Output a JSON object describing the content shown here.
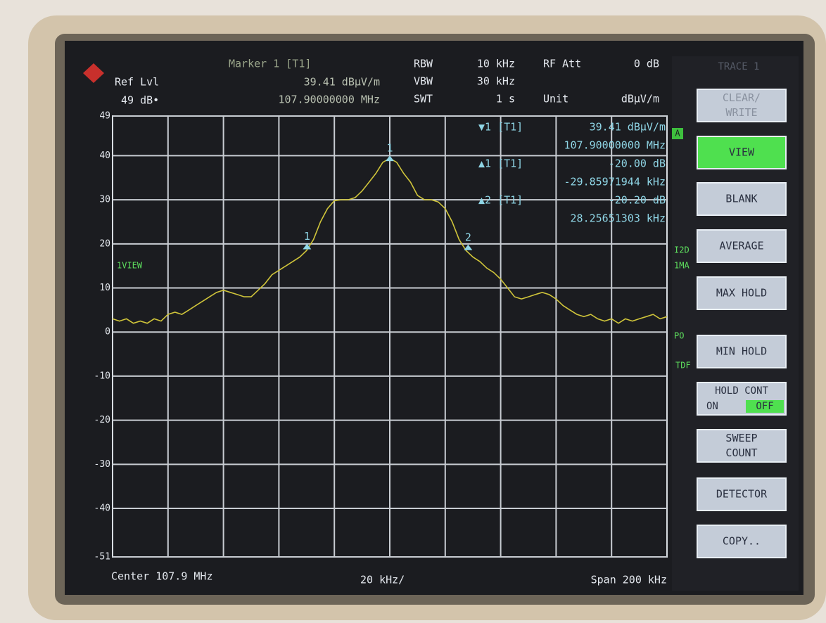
{
  "header": {
    "ref_label": "Ref Lvl",
    "ref_value": "49 dB•",
    "marker_title": "Marker 1 [T1]",
    "marker_level": "39.41 dBµV/m",
    "marker_freq": "107.90000000 MHz",
    "settings": [
      [
        "RBW",
        "10 kHz",
        "RF Att",
        "0 dB"
      ],
      [
        "VBW",
        "30 kHz",
        "",
        ""
      ],
      [
        "SWT",
        "1 s",
        "Unit",
        "dBµV/m"
      ]
    ],
    "trace_menu": "TRACE 1"
  },
  "side_labels": {
    "trace_mode": "1VIEW",
    "a": "A",
    "i2d": "I2D",
    "ima": "1MA",
    "po": "PO",
    "tdf": "TDF"
  },
  "marker_table": [
    {
      "id": "▼1 [T1]",
      "level": "39.41 dBµV/m",
      "freq": "107.90000000 MHz"
    },
    {
      "id": "▲1 [T1]",
      "level": "-20.00 dB",
      "freq": "-29.85971944 kHz"
    },
    {
      "id": "▲2 [T1]",
      "level": "-20.20 dB",
      "freq": "28.25651303 kHz"
    }
  ],
  "footer": {
    "center": "Center 107.9 MHz",
    "div": "20 kHz/",
    "span": "Span 200 kHz"
  },
  "softkeys": [
    {
      "lines": [
        "CLEAR/",
        "WRITE"
      ]
    },
    {
      "lines": [
        "VIEW"
      ]
    },
    {
      "lines": [
        "BLANK"
      ]
    },
    {
      "lines": [
        "AVERAGE"
      ]
    },
    {
      "lines": [
        "MAX HOLD"
      ]
    },
    {
      "lines": [
        "MIN HOLD"
      ]
    },
    {
      "lines": [
        "HOLD  CONT",
        "ON",
        "OFF"
      ]
    },
    {
      "lines": [
        "SWEEP",
        "COUNT"
      ]
    },
    {
      "lines": [
        "DETECTOR"
      ]
    },
    {
      "lines": [
        "COPY.."
      ]
    }
  ],
  "chart_data": {
    "type": "line",
    "color": "#cfc43a",
    "grid": true,
    "ylim": [
      -51,
      49
    ],
    "yticks": [
      49,
      40,
      30,
      20,
      10,
      0,
      -10,
      -20,
      -30,
      -40,
      -51
    ],
    "xlim": [
      -100,
      100
    ],
    "values": [
      3,
      2.5,
      3,
      2,
      2.5,
      2,
      3,
      2.5,
      4,
      4.5,
      4,
      5,
      6,
      7,
      8,
      9,
      9.5,
      9,
      8.5,
      8,
      8,
      9.5,
      11,
      13,
      14,
      15,
      16,
      17,
      18.5,
      21,
      25,
      28,
      29.8,
      30,
      30,
      30.5,
      32,
      34,
      36,
      38.5,
      39.4,
      38.5,
      36,
      34,
      31,
      30,
      30,
      29.5,
      28,
      25,
      21,
      18.5,
      17,
      16,
      14.5,
      13.5,
      12,
      10,
      8,
      7.5,
      8,
      8.5,
      9,
      8.5,
      7.5,
      6,
      5,
      4,
      3.5,
      4,
      3,
      2.5,
      3,
      2,
      3,
      2.5,
      3,
      3.5,
      4,
      3,
      3.5
    ],
    "markers": [
      {
        "label": "1",
        "x": 0,
        "y": 39.41
      },
      {
        "label": "1",
        "x": -29.86,
        "y": 19.41
      },
      {
        "label": "2",
        "x": 28.26,
        "y": 19.21
      }
    ]
  }
}
